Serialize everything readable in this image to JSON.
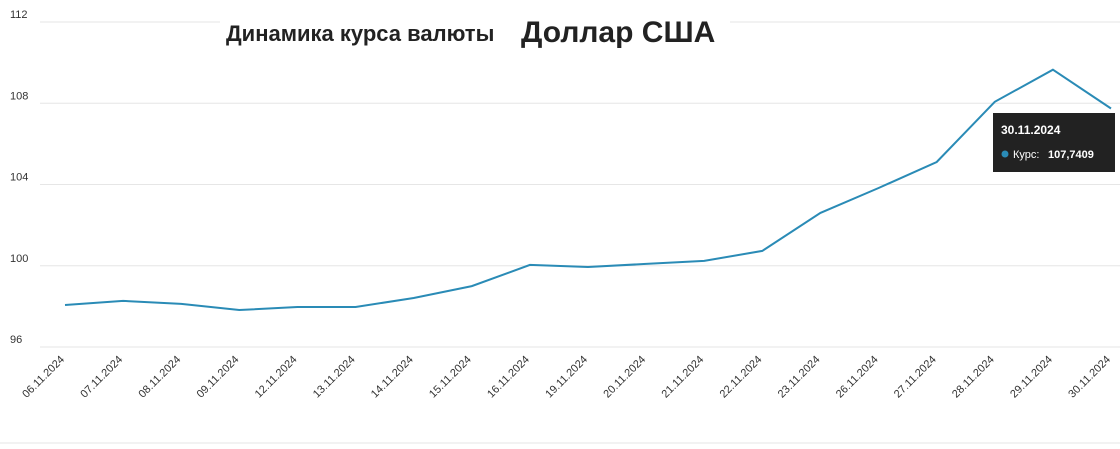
{
  "chart_data": {
    "type": "line",
    "title": "Динамика курса валюты",
    "currency": "Доллар США",
    "categories": [
      "06.11.2024",
      "07.11.2024",
      "08.11.2024",
      "09.11.2024",
      "12.11.2024",
      "13.11.2024",
      "14.11.2024",
      "15.11.2024",
      "16.11.2024",
      "19.11.2024",
      "20.11.2024",
      "21.11.2024",
      "22.11.2024",
      "23.11.2024",
      "26.11.2024",
      "27.11.2024",
      "28.11.2024",
      "29.11.2024",
      "30.11.2024"
    ],
    "series": [
      {
        "name": "Курс:",
        "color": "#2a8bb6",
        "values": [
          98.07,
          98.27,
          98.12,
          97.82,
          97.97,
          97.97,
          98.41,
          99.0,
          100.04,
          99.94,
          100.09,
          100.24,
          100.73,
          102.6,
          103.83,
          105.11,
          108.07,
          109.65,
          107.7409
        ]
      }
    ],
    "ylim": [
      96,
      112
    ],
    "yticks": [
      96,
      100,
      104,
      108,
      112
    ],
    "grid": true,
    "tooltip": {
      "value_label": "107,7409"
    }
  }
}
